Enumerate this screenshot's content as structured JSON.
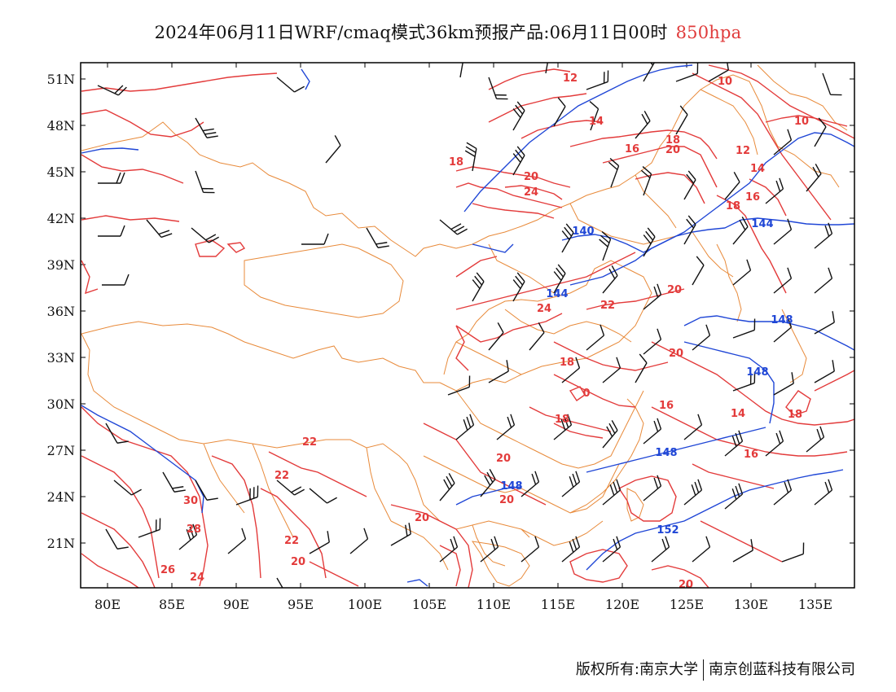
{
  "title": {
    "main": "2024年06月11日WRF/cmaq模式36km预报产品:06月11日00时",
    "level": "850hpa"
  },
  "footer": {
    "left": "版权所有:南京大学",
    "right": "南京创蓝科技有限公司"
  },
  "axes": {
    "lat_labels": [
      "51N",
      "48N",
      "45N",
      "42N",
      "39N",
      "36N",
      "33N",
      "30N",
      "27N",
      "24N",
      "21N"
    ],
    "lon_labels": [
      "80E",
      "85E",
      "90E",
      "95E",
      "100E",
      "105E",
      "110E",
      "115E",
      "120E",
      "125E",
      "130E",
      "135E"
    ]
  },
  "colors": {
    "temperature": "#e33b3b",
    "geopotential": "#1f46d6",
    "border": "#e88a3a",
    "barb": "#111111",
    "frame": "#000000"
  },
  "temperature_labels": [
    "12",
    "10",
    "14",
    "10",
    "16",
    "18",
    "20",
    "12",
    "14",
    "18",
    "20",
    "24",
    "16",
    "18",
    "24",
    "22",
    "20",
    "18",
    "20",
    "0",
    "18",
    "16",
    "14",
    "18",
    "16",
    "22",
    "20",
    "22",
    "20",
    "30",
    "28",
    "20",
    "22",
    "20",
    "26",
    "24",
    "20"
  ],
  "height_labels": [
    "140",
    "144",
    "144",
    "148",
    "148",
    "148",
    "148",
    "152"
  ]
}
